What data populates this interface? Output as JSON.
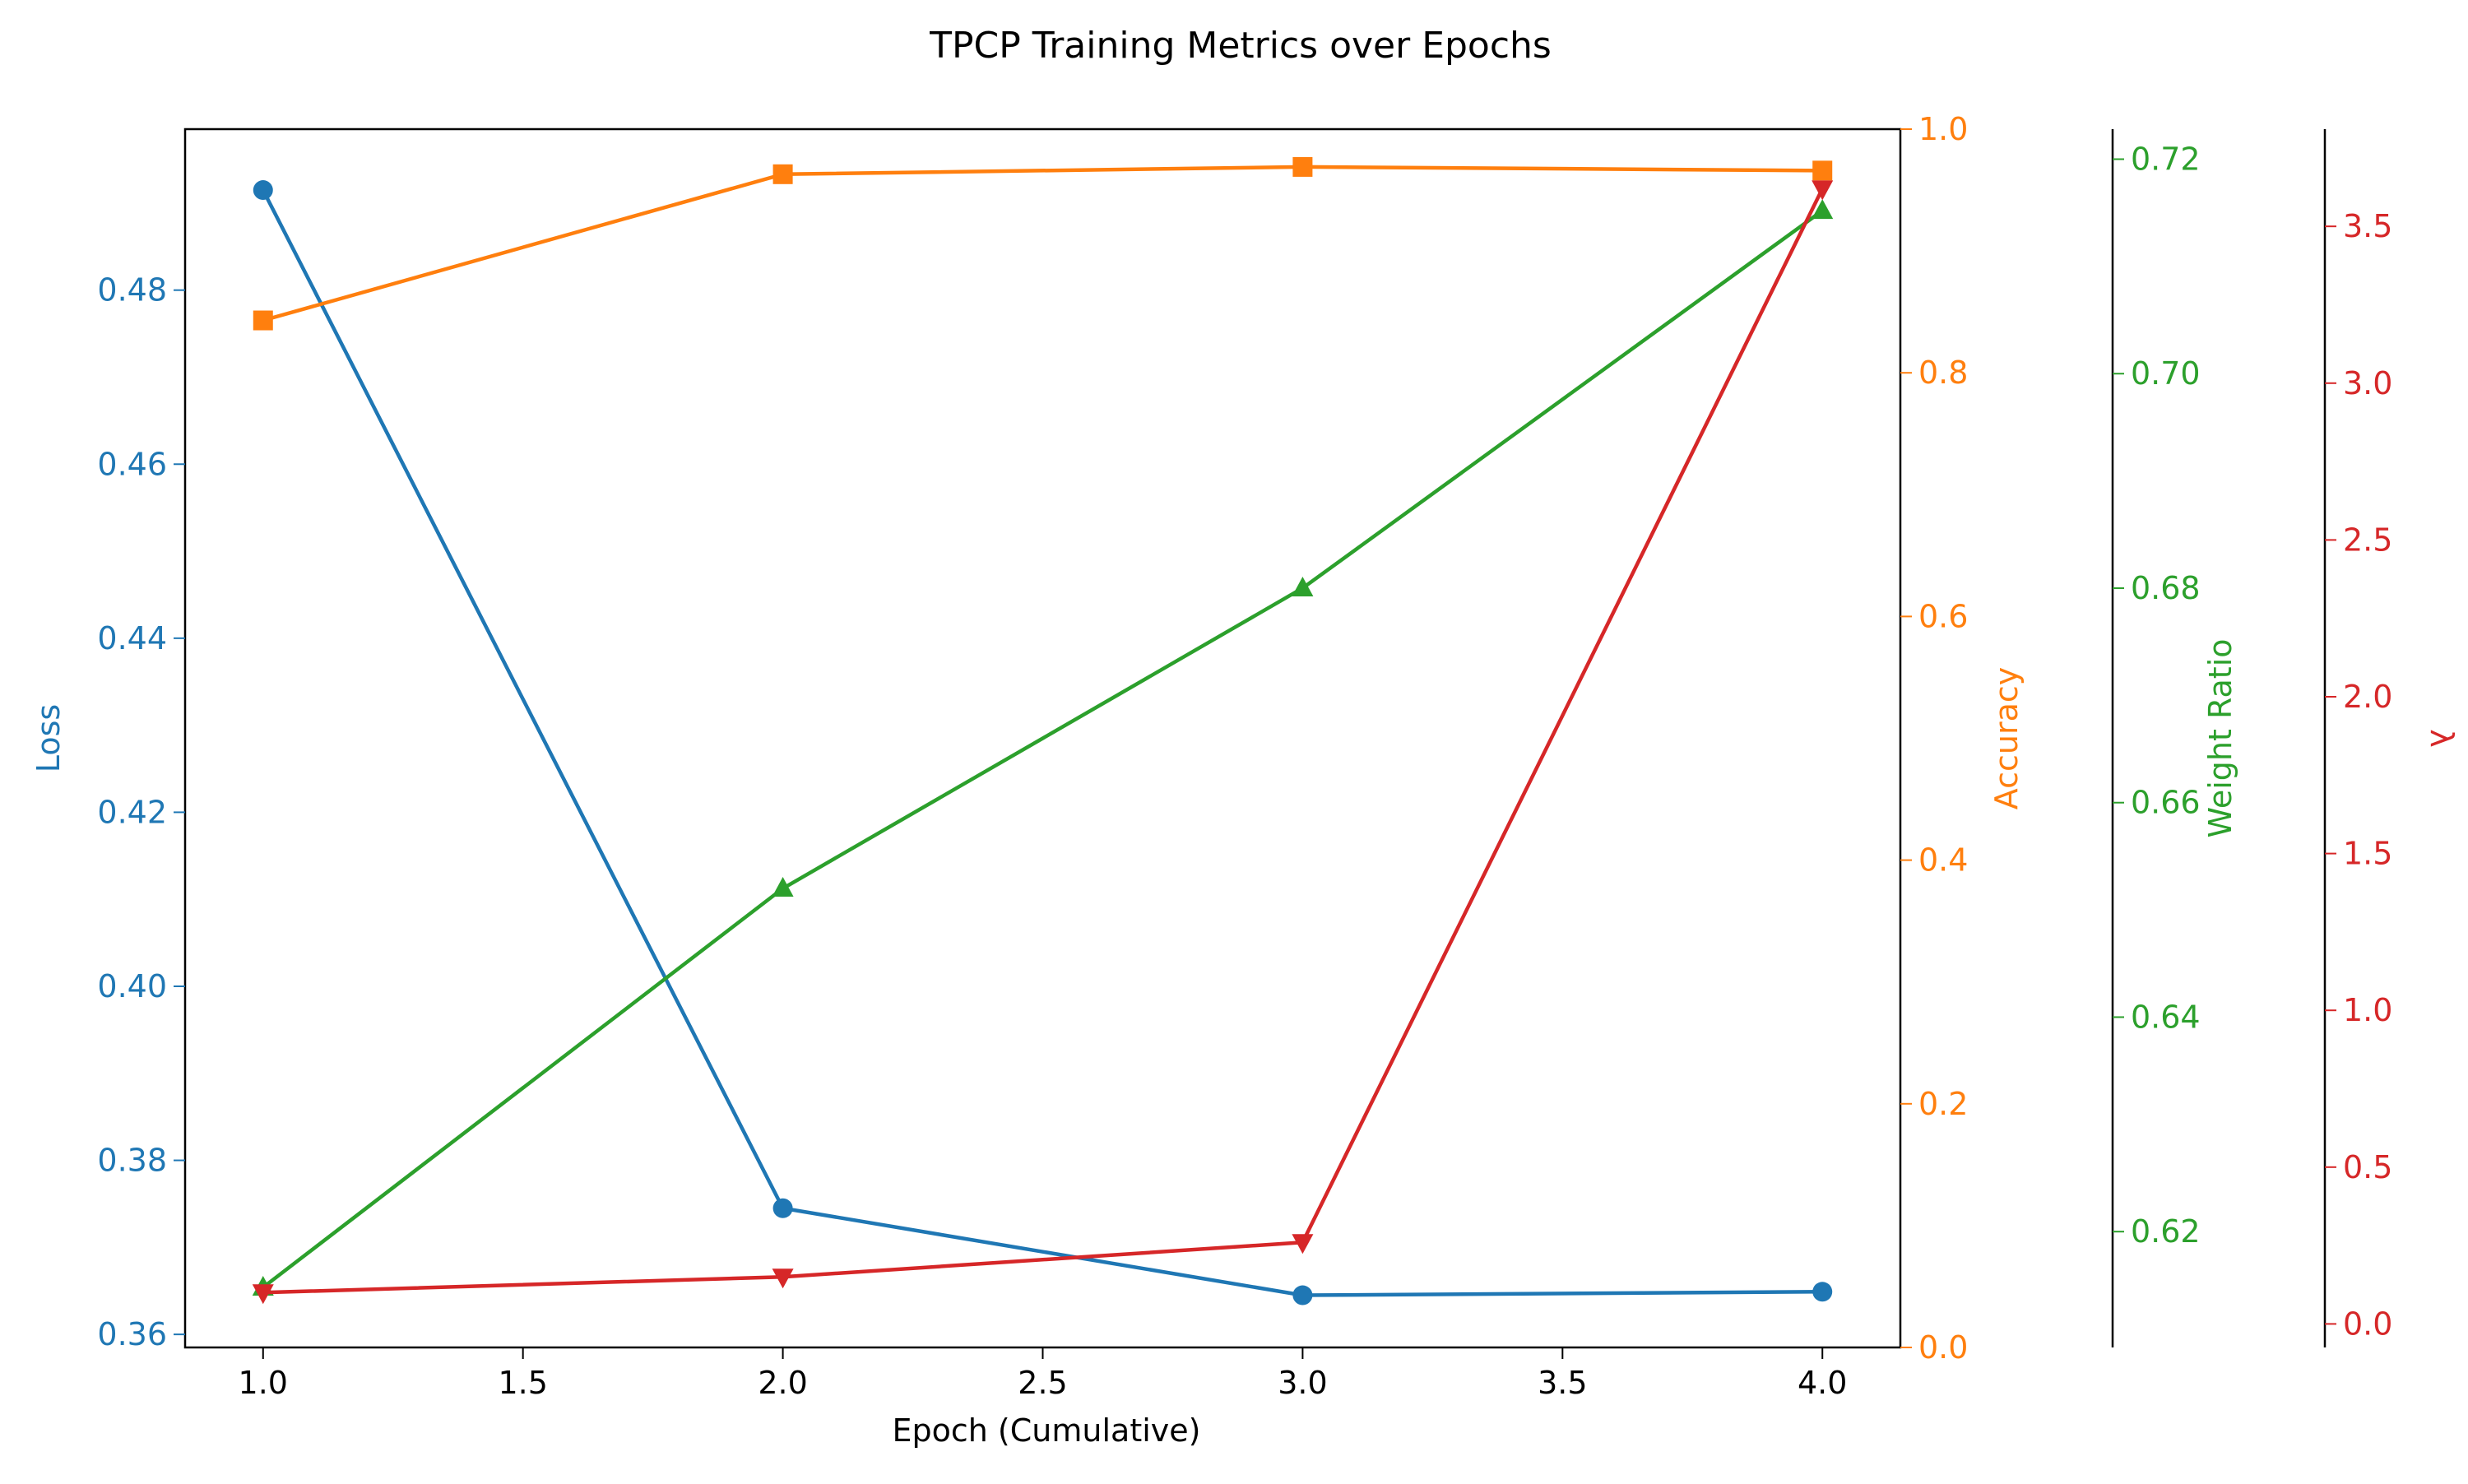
{
  "chart_data": {
    "type": "line",
    "title": "TPCP Training Metrics over Epochs",
    "xlabel": "Epoch (Cumulative)",
    "xlim": [
      0.85,
      4.15
    ],
    "x_ticks": [
      1.0,
      1.5,
      2.0,
      2.5,
      3.0,
      3.5,
      4.0
    ],
    "x": [
      1.0,
      2.0,
      3.0,
      4.0
    ],
    "grid": false,
    "series": [
      {
        "key": "loss",
        "ylabel": "Loss",
        "color": "#1f77b4",
        "marker": "circle",
        "axis_side": "left",
        "ylim": [
          0.3585,
          0.4985
        ],
        "ticks": [
          0.36,
          0.38,
          0.4,
          0.42,
          0.44,
          0.46,
          0.48
        ],
        "values": [
          0.4915,
          0.3745,
          0.3645,
          0.3649
        ]
      },
      {
        "key": "accuracy",
        "ylabel": "Accuracy",
        "color": "#ff7f0e",
        "marker": "square",
        "axis_side": "right",
        "ylim": [
          0.0,
          1.0
        ],
        "ticks": [
          0.0,
          0.2,
          0.4,
          0.6,
          0.8,
          1.0
        ],
        "values": [
          0.843,
          0.963,
          0.969,
          0.966
        ]
      },
      {
        "key": "weight_ratio",
        "ylabel": "Weight Ratio",
        "color": "#2ca02c",
        "marker": "triangle-up",
        "axis_side": "right-offset-1",
        "ylim": [
          0.6092,
          0.7228
        ],
        "ticks": [
          0.62,
          0.64,
          0.66,
          0.68,
          0.7,
          0.72
        ],
        "values": [
          0.6148,
          0.652,
          0.68,
          0.7152
        ]
      },
      {
        "key": "lambda",
        "ylabel": "λ",
        "color": "#d62728",
        "marker": "triangle-down",
        "axis_side": "right-offset-2",
        "ylim": [
          -0.075,
          3.81
        ],
        "ticks": [
          0.0,
          0.5,
          1.0,
          1.5,
          2.0,
          2.5,
          3.0,
          3.5
        ],
        "values": [
          0.1,
          0.15,
          0.26,
          3.62
        ]
      }
    ]
  }
}
